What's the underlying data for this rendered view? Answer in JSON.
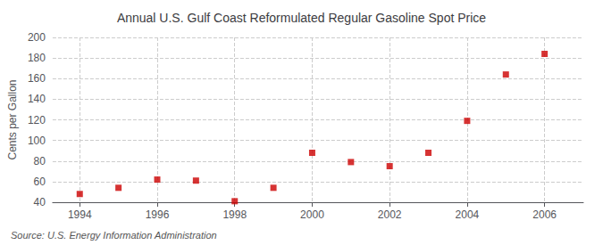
{
  "chart_data": {
    "type": "scatter",
    "title": "Annual U.S. Gulf Coast Reformulated Regular Gasoline Spot Price",
    "ylabel": "Cents per Gallon",
    "source": "Source: U.S. Energy Information Administration",
    "x": [
      1994,
      1995,
      1996,
      1997,
      1998,
      1999,
      2000,
      2001,
      2002,
      2003,
      2004,
      2005,
      2006
    ],
    "values": [
      48,
      54,
      62,
      61,
      41,
      54,
      88,
      79,
      75,
      88,
      119,
      164,
      184
    ],
    "color": "#cc0000",
    "marker": "square",
    "xlim": [
      1993.3,
      2007.0
    ],
    "xticks": [
      1994,
      1996,
      1998,
      2000,
      2002,
      2004,
      2006
    ],
    "ylim": [
      40,
      200
    ],
    "yticks": [
      40,
      60,
      80,
      100,
      120,
      140,
      160,
      180,
      200
    ],
    "grid": true
  }
}
